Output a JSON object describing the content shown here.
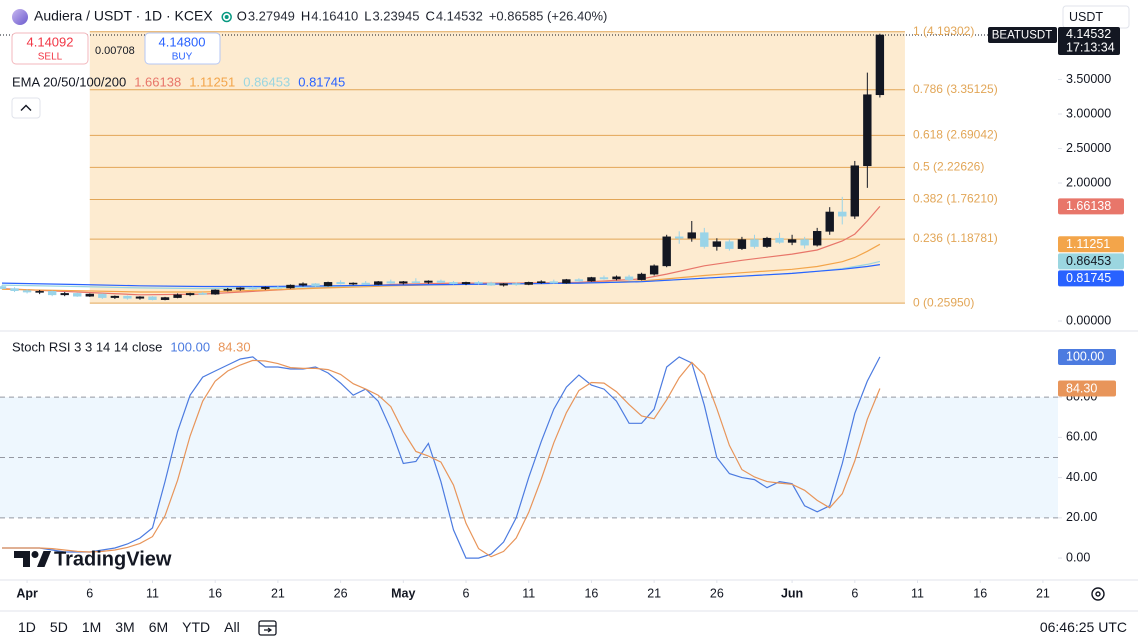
{
  "header": {
    "symbol_title": "Audiera / USDT · 1D · KCEX",
    "ohlc": [
      {
        "label": "O",
        "value": "3.27949"
      },
      {
        "label": "H",
        "value": "4.16410"
      },
      {
        "label": "L",
        "value": "3.23945"
      },
      {
        "label": "C",
        "value": "4.14532"
      }
    ],
    "change": "+0.86585 (+26.40%)",
    "currency": "USDT"
  },
  "trade": {
    "sell_price": "4.14092",
    "sell": "SELL",
    "spread": "0.00708",
    "buy_price": "4.14800",
    "buy": "BUY"
  },
  "brand": "TradingView",
  "toolbar": {
    "ranges": [
      "1D",
      "5D",
      "1M",
      "3M",
      "6M",
      "YTD",
      "All"
    ],
    "clock": "06:46:25 UTC"
  },
  "chart_data": [
    {
      "type": "candlestick",
      "indicator_label": "EMA 20/50/100/200",
      "symbol_tag": "BEATUSDT",
      "countdown": "17:13:34",
      "up_color": "#131722",
      "down_color": "#9ad4e8",
      "xlim": [
        "Mar 30",
        "Jun 23"
      ],
      "ylim": [
        -0.13,
        4.58
      ],
      "yticks": [
        {
          "value": 0,
          "label": "0.00000"
        },
        {
          "value": 2,
          "label": "2.00000"
        },
        {
          "value": 2.5,
          "label": "2.50000"
        },
        {
          "value": 3,
          "label": "3.00000"
        },
        {
          "value": 3.5,
          "label": "3.50000"
        }
      ],
      "x": [
        "Mar 30",
        "Mar 31",
        "Apr 1",
        "Apr 2",
        "Apr 3",
        "Apr 4",
        "Apr 5",
        "Apr 6",
        "Apr 7",
        "Apr 8",
        "Apr 9",
        "Apr 10",
        "Apr 11",
        "Apr 12",
        "Apr 13",
        "Apr 14",
        "Apr 15",
        "Apr 16",
        "Apr 17",
        "Apr 18",
        "Apr 19",
        "Apr 20",
        "Apr 21",
        "Apr 22",
        "Apr 23",
        "Apr 24",
        "Apr 25",
        "Apr 26",
        "Apr 27",
        "Apr 28",
        "Apr 29",
        "Apr 30",
        "May 1",
        "May 2",
        "May 3",
        "May 4",
        "May 5",
        "May 6",
        "May 7",
        "May 8",
        "May 9",
        "May 10",
        "May 11",
        "May 12",
        "May 13",
        "May 14",
        "May 15",
        "May 16",
        "May 17",
        "May 18",
        "May 19",
        "May 20",
        "May 21",
        "May 22",
        "May 23",
        "May 24",
        "May 25",
        "May 26",
        "May 27",
        "May 28",
        "May 29",
        "May 30",
        "May 31",
        "Jun 1",
        "Jun 2",
        "Jun 3",
        "Jun 4",
        "Jun 5",
        "Jun 6",
        "Jun 7",
        "Jun 8"
      ],
      "open": [
        0.5,
        0.47,
        0.44,
        0.42,
        0.43,
        0.38,
        0.4,
        0.36,
        0.39,
        0.34,
        0.36,
        0.33,
        0.35,
        0.31,
        0.34,
        0.38,
        0.4,
        0.39,
        0.45,
        0.46,
        0.48,
        0.47,
        0.49,
        0.48,
        0.52,
        0.54,
        0.51,
        0.56,
        0.54,
        0.55,
        0.53,
        0.57,
        0.55,
        0.57,
        0.56,
        0.58,
        0.56,
        0.54,
        0.56,
        0.55,
        0.52,
        0.54,
        0.53,
        0.56,
        0.57,
        0.55,
        0.6,
        0.58,
        0.63,
        0.61,
        0.64,
        0.6,
        0.68,
        0.8,
        1.22,
        1.2,
        1.28,
        1.08,
        1.15,
        1.05,
        1.18,
        1.08,
        1.2,
        1.14,
        1.18,
        1.1,
        1.3,
        1.58,
        1.52,
        2.25,
        3.27949
      ],
      "high": [
        0.52,
        0.49,
        0.46,
        0.45,
        0.44,
        0.42,
        0.41,
        0.4,
        0.4,
        0.37,
        0.37,
        0.36,
        0.36,
        0.35,
        0.4,
        0.41,
        0.42,
        0.46,
        0.48,
        0.49,
        0.5,
        0.5,
        0.51,
        0.53,
        0.56,
        0.55,
        0.57,
        0.59,
        0.56,
        0.58,
        0.58,
        0.6,
        0.58,
        0.62,
        0.59,
        0.6,
        0.58,
        0.57,
        0.58,
        0.57,
        0.55,
        0.56,
        0.57,
        0.59,
        0.6,
        0.61,
        0.62,
        0.64,
        0.66,
        0.66,
        0.67,
        0.7,
        0.82,
        1.25,
        1.3,
        1.45,
        1.35,
        1.2,
        1.18,
        1.22,
        1.25,
        1.22,
        1.28,
        1.25,
        1.22,
        1.35,
        1.65,
        1.8,
        2.32,
        3.6,
        4.1641
      ],
      "low": [
        0.46,
        0.42,
        0.4,
        0.39,
        0.36,
        0.36,
        0.35,
        0.35,
        0.32,
        0.32,
        0.31,
        0.31,
        0.3,
        0.3,
        0.33,
        0.36,
        0.38,
        0.38,
        0.43,
        0.44,
        0.45,
        0.45,
        0.46,
        0.47,
        0.5,
        0.5,
        0.5,
        0.53,
        0.52,
        0.53,
        0.52,
        0.54,
        0.53,
        0.55,
        0.54,
        0.55,
        0.53,
        0.52,
        0.53,
        0.51,
        0.5,
        0.51,
        0.52,
        0.54,
        0.54,
        0.54,
        0.57,
        0.57,
        0.6,
        0.59,
        0.58,
        0.59,
        0.66,
        0.78,
        1.12,
        1.15,
        1.05,
        1.02,
        1.02,
        1.03,
        1.05,
        1.06,
        1.12,
        1.1,
        1.05,
        1.08,
        1.25,
        1.4,
        1.48,
        1.93,
        3.23945
      ],
      "close": [
        0.47,
        0.44,
        0.42,
        0.43,
        0.38,
        0.4,
        0.36,
        0.39,
        0.34,
        0.36,
        0.33,
        0.35,
        0.31,
        0.34,
        0.38,
        0.4,
        0.39,
        0.45,
        0.46,
        0.48,
        0.47,
        0.49,
        0.48,
        0.52,
        0.54,
        0.51,
        0.56,
        0.54,
        0.55,
        0.53,
        0.57,
        0.55,
        0.57,
        0.56,
        0.58,
        0.56,
        0.54,
        0.56,
        0.55,
        0.52,
        0.54,
        0.53,
        0.56,
        0.57,
        0.55,
        0.6,
        0.58,
        0.63,
        0.61,
        0.64,
        0.6,
        0.68,
        0.8,
        1.22,
        1.2,
        1.28,
        1.08,
        1.15,
        1.05,
        1.18,
        1.08,
        1.2,
        1.14,
        1.18,
        1.1,
        1.3,
        1.58,
        1.52,
        2.25,
        3.27949,
        4.14532
      ],
      "series": [
        {
          "color": "#e8766a",
          "x": [
            "Mar 30",
            "Apr 5",
            "Apr 10",
            "Apr 15",
            "Apr 20",
            "Apr 25",
            "Apr 30",
            "May 5",
            "May 10",
            "May 15",
            "May 20",
            "May 22",
            "May 25",
            "May 28",
            "Jun 1",
            "Jun 3",
            "Jun 5",
            "Jun 6",
            "Jun 7",
            "Jun 8"
          ],
          "values": [
            0.47,
            0.42,
            0.38,
            0.39,
            0.44,
            0.49,
            0.53,
            0.55,
            0.55,
            0.56,
            0.61,
            0.68,
            0.8,
            0.88,
            0.97,
            1.03,
            1.16,
            1.26,
            1.45,
            1.66138
          ]
        },
        {
          "color": "#f3a54a",
          "x": [
            "Mar 30",
            "Apr 5",
            "Apr 10",
            "Apr 15",
            "Apr 20",
            "Apr 25",
            "Apr 30",
            "May 5",
            "May 10",
            "May 15",
            "May 20",
            "May 22",
            "May 25",
            "May 28",
            "Jun 1",
            "Jun 3",
            "Jun 5",
            "Jun 6",
            "Jun 7",
            "Jun 8"
          ],
          "values": [
            0.46,
            0.44,
            0.42,
            0.42,
            0.45,
            0.48,
            0.51,
            0.53,
            0.54,
            0.55,
            0.58,
            0.61,
            0.66,
            0.7,
            0.75,
            0.79,
            0.86,
            0.92,
            1.01,
            1.11251
          ]
        },
        {
          "color": "#9bd6e0",
          "x": [
            "Mar 30",
            "Apr 5",
            "Apr 10",
            "Apr 15",
            "Apr 20",
            "Apr 25",
            "Apr 30",
            "May 5",
            "May 10",
            "May 15",
            "May 20",
            "May 22",
            "May 25",
            "May 28",
            "Jun 1",
            "Jun 3",
            "Jun 5",
            "Jun 6",
            "Jun 7",
            "Jun 8"
          ],
          "values": [
            0.52,
            0.5,
            0.48,
            0.47,
            0.48,
            0.5,
            0.52,
            0.53,
            0.54,
            0.55,
            0.57,
            0.59,
            0.62,
            0.65,
            0.69,
            0.72,
            0.76,
            0.79,
            0.82,
            0.86453
          ]
        },
        {
          "color": "#2962ff",
          "x": [
            "Mar 30",
            "Apr 5",
            "Apr 10",
            "Apr 15",
            "Apr 20",
            "Apr 25",
            "Apr 30",
            "May 5",
            "May 10",
            "May 15",
            "May 20",
            "May 22",
            "May 25",
            "May 28",
            "Jun 1",
            "Jun 3",
            "Jun 5",
            "Jun 6",
            "Jun 7",
            "Jun 8"
          ],
          "values": [
            0.55,
            0.53,
            0.51,
            0.5,
            0.5,
            0.51,
            0.52,
            0.53,
            0.54,
            0.55,
            0.57,
            0.59,
            0.62,
            0.65,
            0.69,
            0.72,
            0.75,
            0.77,
            0.79,
            0.81745
          ]
        }
      ],
      "fib": {
        "start": "Apr 6",
        "end": "Jun 10",
        "color": "#e2a657",
        "fill": "#fde8c8",
        "levels": [
          {
            "value": 4.19302,
            "label": "1 (4.19302)"
          },
          {
            "value": 3.35125,
            "label": "0.786 (3.35125)"
          },
          {
            "value": 2.69042,
            "label": "0.618 (2.69042)"
          },
          {
            "value": 2.22626,
            "label": "0.5 (2.22626)"
          },
          {
            "value": 1.7621,
            "label": "0.382 (1.76210)"
          },
          {
            "value": 1.18781,
            "label": "0.236 (1.18781)"
          },
          {
            "value": 0.2595,
            "label": "0 (0.25950)"
          }
        ]
      }
    },
    {
      "type": "line",
      "title": "Stoch RSI 3 3 14 14 close",
      "xlim": [
        "Mar 30",
        "Jun 23"
      ],
      "ylim": [
        -10.9,
        112.4
      ],
      "yticks": [
        {
          "value": 0,
          "label": "0.00"
        },
        {
          "value": 20,
          "label": "20.00"
        },
        {
          "value": 40,
          "label": "40.00"
        },
        {
          "value": 60,
          "label": "60.00"
        },
        {
          "value": 80,
          "label": "80.00"
        }
      ],
      "bands": [
        80,
        50,
        20
      ],
      "band_fill": "rgba(33,150,243,0.08)",
      "xticks": [
        {
          "value": "Apr 1",
          "label": "Apr"
        },
        {
          "value": "Apr 6",
          "label": "6"
        },
        {
          "value": "Apr 11",
          "label": "11"
        },
        {
          "value": "Apr 16",
          "label": "16"
        },
        {
          "value": "Apr 21",
          "label": "21"
        },
        {
          "value": "Apr 26",
          "label": "26"
        },
        {
          "value": "May 1",
          "label": "May"
        },
        {
          "value": "May 6",
          "label": "6"
        },
        {
          "value": "May 11",
          "label": "11"
        },
        {
          "value": "May 16",
          "label": "16"
        },
        {
          "value": "May 21",
          "label": "21"
        },
        {
          "value": "May 26",
          "label": "26"
        },
        {
          "value": "Jun 1",
          "label": "Jun"
        },
        {
          "value": "Jun 6",
          "label": "6"
        },
        {
          "value": "Jun 11",
          "label": "11"
        },
        {
          "value": "Jun 16",
          "label": "16"
        },
        {
          "value": "Jun 21",
          "label": "21"
        }
      ],
      "x": [
        "Mar 30",
        "Mar 31",
        "Apr 1",
        "Apr 2",
        "Apr 3",
        "Apr 4",
        "Apr 5",
        "Apr 6",
        "Apr 7",
        "Apr 8",
        "Apr 9",
        "Apr 10",
        "Apr 11",
        "Apr 12",
        "Apr 13",
        "Apr 14",
        "Apr 15",
        "Apr 16",
        "Apr 17",
        "Apr 18",
        "Apr 19",
        "Apr 20",
        "Apr 21",
        "Apr 22",
        "Apr 23",
        "Apr 24",
        "Apr 25",
        "Apr 26",
        "Apr 27",
        "Apr 28",
        "Apr 29",
        "Apr 30",
        "May 1",
        "May 2",
        "May 3",
        "May 4",
        "May 5",
        "May 6",
        "May 7",
        "May 8",
        "May 9",
        "May 10",
        "May 11",
        "May 12",
        "May 13",
        "May 14",
        "May 15",
        "May 16",
        "May 17",
        "May 18",
        "May 19",
        "May 20",
        "May 21",
        "May 22",
        "May 23",
        "May 24",
        "May 25",
        "May 26",
        "May 27",
        "May 28",
        "May 29",
        "May 30",
        "May 31",
        "Jun 1",
        "Jun 2",
        "Jun 3",
        "Jun 4",
        "Jun 5",
        "Jun 6",
        "Jun 7",
        "Jun 8"
      ],
      "series": [
        {
          "color": "#4c7be0",
          "last_label": "100.00",
          "values": [
            5,
            5,
            5,
            5,
            4,
            3,
            3,
            3,
            4,
            5,
            7,
            10,
            15,
            38,
            63,
            81,
            90,
            93,
            96,
            99,
            100,
            95,
            95,
            94,
            94,
            95,
            92,
            87,
            81,
            84,
            78,
            64,
            47,
            48,
            57,
            38,
            14,
            0,
            0,
            2,
            8,
            20,
            40,
            58,
            74,
            85,
            91,
            86,
            84,
            78,
            67,
            67,
            74,
            95,
            100,
            97,
            76,
            50,
            42,
            40,
            39,
            35,
            38,
            37,
            26,
            23,
            26,
            47,
            72,
            88,
            100
          ]
        },
        {
          "color": "#e8955a",
          "last_label": "84.30",
          "values": [
            5,
            5,
            5,
            5,
            4.7,
            4,
            3.3,
            3,
            3.3,
            4,
            5.3,
            7.3,
            10.7,
            21,
            38.7,
            60.7,
            78,
            88,
            93,
            96,
            98.3,
            98,
            96.7,
            94.7,
            94.3,
            94.3,
            93.7,
            91.3,
            86.7,
            84,
            81,
            75.3,
            63,
            53,
            50.7,
            47.7,
            36.3,
            17.3,
            4.7,
            0.7,
            3.3,
            10,
            22.7,
            39.3,
            57.3,
            72.3,
            83.3,
            87.3,
            87,
            82.7,
            76.3,
            70.7,
            69.3,
            78.7,
            89.7,
            97.3,
            91,
            74.3,
            56,
            44,
            40.3,
            38,
            37.3,
            36.7,
            33.7,
            28.7,
            25,
            32,
            48.3,
            69,
            84.3
          ]
        }
      ]
    }
  ]
}
